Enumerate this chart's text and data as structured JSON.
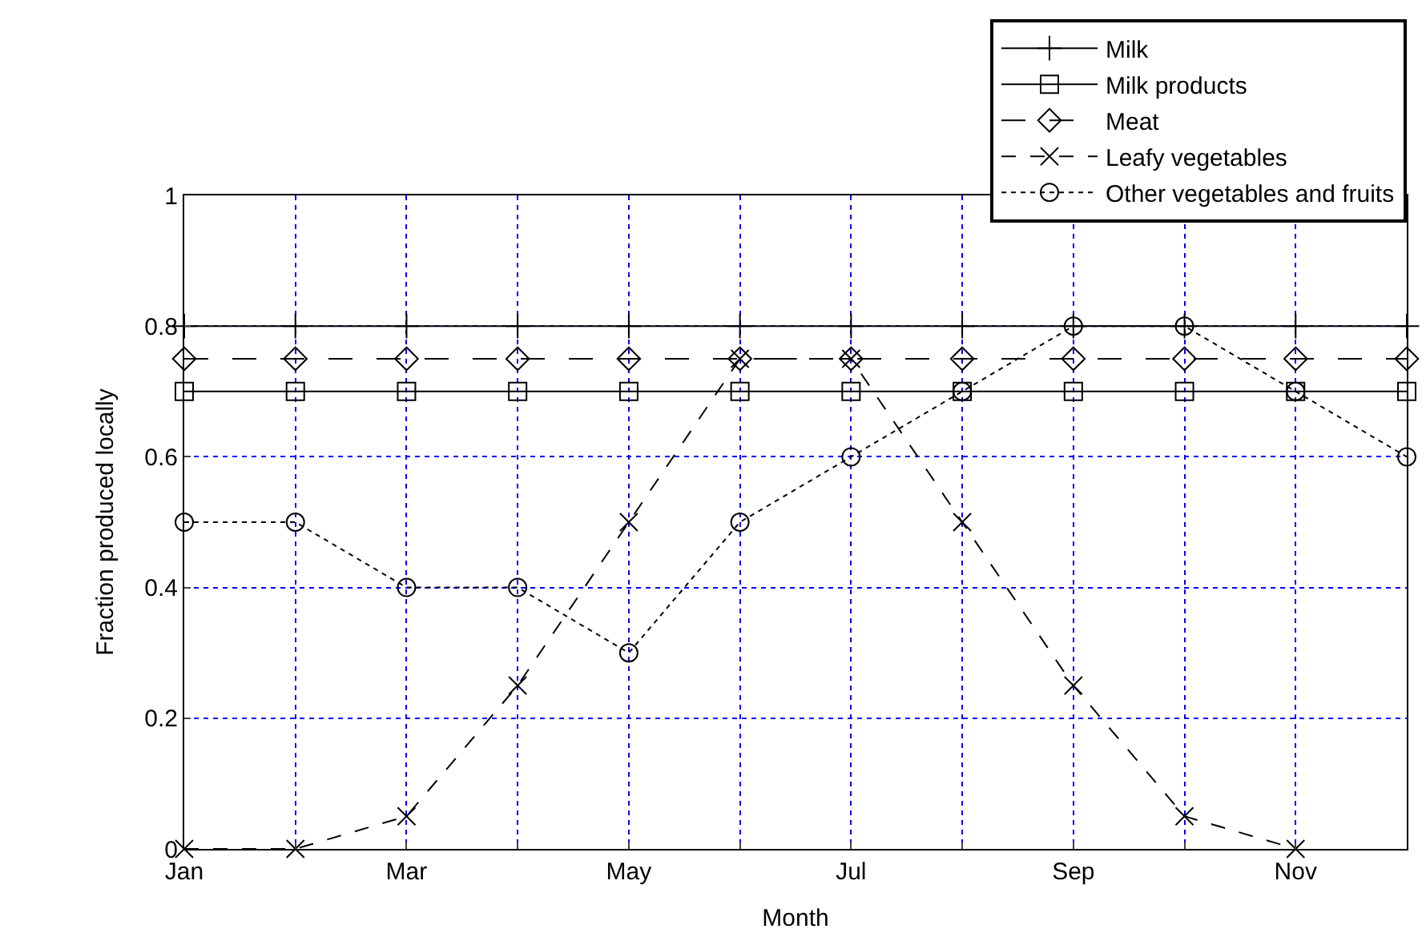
{
  "chart_data": {
    "type": "line",
    "xlabel": "Month",
    "ylabel": "Fraction produced locally",
    "categories": [
      "Jan",
      null,
      "Mar",
      null,
      "May",
      null,
      "Jul",
      null,
      "Sep",
      null,
      "Nov",
      null
    ],
    "series": [
      {
        "name": "Milk",
        "color": "#000000",
        "marker": "cross",
        "line_style": "solid",
        "values": [
          0.8,
          0.8,
          0.8,
          0.8,
          0.8,
          0.8,
          0.8,
          0.8,
          0.8,
          0.8,
          0.8,
          0.8
        ]
      },
      {
        "name": "Milk products",
        "color": "#000000",
        "marker": "square",
        "line_style": "solid",
        "values": [
          0.7,
          0.7,
          0.7,
          0.7,
          0.7,
          0.7,
          0.7,
          0.7,
          0.7,
          0.7,
          0.7,
          0.7
        ]
      },
      {
        "name": "Meat",
        "color": "#000000",
        "marker": "diamond",
        "line_style": "longdash",
        "values": [
          0.75,
          0.75,
          0.75,
          0.75,
          0.75,
          0.75,
          0.75,
          0.75,
          0.75,
          0.75,
          0.75,
          0.75
        ]
      },
      {
        "name": "Leafy vegetables",
        "color": "#000000",
        "marker": "x",
        "line_style": "dashed",
        "values": [
          0,
          0,
          0.05,
          0.25,
          0.5,
          0.75,
          0.75,
          0.5,
          0.25,
          0.05,
          0,
          null
        ]
      },
      {
        "name": "Other vegetables and fruits",
        "color": "#000000",
        "marker": "circle",
        "line_style": "dotted",
        "values": [
          0.5,
          0.5,
          0.4,
          0.4,
          0.3,
          0.5,
          0.6,
          0.7,
          0.8,
          0.8,
          0.7,
          0.6
        ]
      }
    ],
    "ylim": [
      0,
      1
    ],
    "yticks": [
      0,
      0.2,
      0.4,
      0.6,
      0.8,
      1
    ],
    "grid": true,
    "legend": "top right"
  }
}
